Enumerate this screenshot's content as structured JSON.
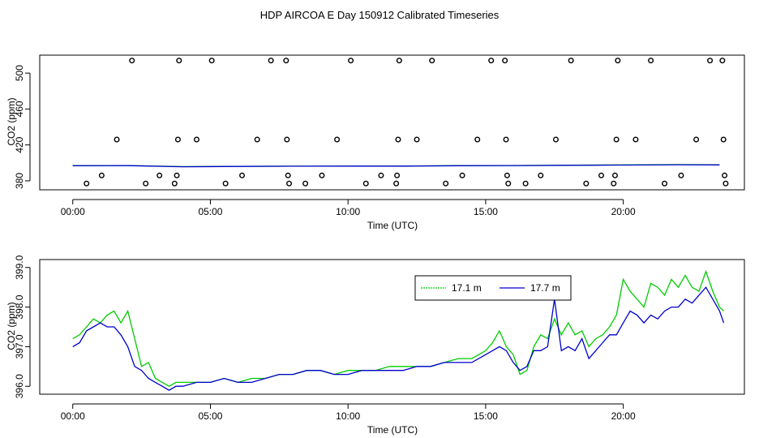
{
  "title": "HDP AIRCOA E  Day 150912  Calibrated Timeseries",
  "chart_data": [
    {
      "type": "scatter",
      "xlabel": "Time (UTC)",
      "ylabel": "CO2 (ppm)",
      "xlim": [
        -1.2,
        24.4
      ],
      "ylim": [
        370,
        520
      ],
      "xticks": [
        0,
        5,
        10,
        15,
        20
      ],
      "xtick_labels": [
        "00:00",
        "05:00",
        "10:00",
        "15:00",
        "20:00"
      ],
      "yticks": [
        380,
        420,
        460,
        500
      ],
      "ytick_labels": [
        "380",
        "420",
        "460",
        "500"
      ],
      "grid": false,
      "points": [
        {
          "x": 0.5,
          "y": 377
        },
        {
          "x": 1.05,
          "y": 386
        },
        {
          "x": 1.6,
          "y": 426
        },
        {
          "x": 2.15,
          "y": 514
        },
        {
          "x": 2.65,
          "y": 377
        },
        {
          "x": 3.15,
          "y": 386
        },
        {
          "x": 3.7,
          "y": 377
        },
        {
          "x": 3.78,
          "y": 386
        },
        {
          "x": 3.82,
          "y": 426
        },
        {
          "x": 3.86,
          "y": 514
        },
        {
          "x": 4.5,
          "y": 426
        },
        {
          "x": 5.05,
          "y": 514
        },
        {
          "x": 5.55,
          "y": 377
        },
        {
          "x": 6.15,
          "y": 386
        },
        {
          "x": 6.7,
          "y": 426
        },
        {
          "x": 7.2,
          "y": 514
        },
        {
          "x": 7.75,
          "y": 514
        },
        {
          "x": 7.78,
          "y": 426
        },
        {
          "x": 7.82,
          "y": 386
        },
        {
          "x": 7.86,
          "y": 377
        },
        {
          "x": 8.45,
          "y": 377
        },
        {
          "x": 9.05,
          "y": 386
        },
        {
          "x": 9.6,
          "y": 426
        },
        {
          "x": 10.1,
          "y": 514
        },
        {
          "x": 10.65,
          "y": 377
        },
        {
          "x": 11.2,
          "y": 386
        },
        {
          "x": 11.75,
          "y": 377
        },
        {
          "x": 11.78,
          "y": 386
        },
        {
          "x": 11.82,
          "y": 426
        },
        {
          "x": 11.86,
          "y": 514
        },
        {
          "x": 12.5,
          "y": 426
        },
        {
          "x": 13.05,
          "y": 514
        },
        {
          "x": 13.55,
          "y": 377
        },
        {
          "x": 14.15,
          "y": 386
        },
        {
          "x": 14.7,
          "y": 426
        },
        {
          "x": 15.2,
          "y": 514
        },
        {
          "x": 15.7,
          "y": 514
        },
        {
          "x": 15.74,
          "y": 426
        },
        {
          "x": 15.78,
          "y": 386
        },
        {
          "x": 15.82,
          "y": 377
        },
        {
          "x": 16.45,
          "y": 377
        },
        {
          "x": 17.0,
          "y": 386
        },
        {
          "x": 17.55,
          "y": 426
        },
        {
          "x": 18.1,
          "y": 514
        },
        {
          "x": 18.65,
          "y": 377
        },
        {
          "x": 19.2,
          "y": 386
        },
        {
          "x": 19.65,
          "y": 377
        },
        {
          "x": 19.7,
          "y": 386
        },
        {
          "x": 19.75,
          "y": 426
        },
        {
          "x": 19.8,
          "y": 514
        },
        {
          "x": 20.45,
          "y": 426
        },
        {
          "x": 21.0,
          "y": 514
        },
        {
          "x": 21.5,
          "y": 377
        },
        {
          "x": 22.1,
          "y": 386
        },
        {
          "x": 22.65,
          "y": 426
        },
        {
          "x": 23.15,
          "y": 514
        },
        {
          "x": 23.6,
          "y": 514
        },
        {
          "x": 23.64,
          "y": 426
        },
        {
          "x": 23.68,
          "y": 386
        },
        {
          "x": 23.72,
          "y": 377
        }
      ],
      "series": [
        {
          "name": "17.1 m",
          "color": "#00cc00",
          "x": [
            0,
            2,
            4,
            6,
            8,
            10,
            12,
            14,
            16,
            18,
            20,
            22,
            23.5
          ],
          "values": [
            396.9,
            397.0,
            395.8,
            396.1,
            396.3,
            396.4,
            396.5,
            396.9,
            397.0,
            397.4,
            397.7,
            398.1,
            397.9
          ]
        },
        {
          "name": "17.7 m",
          "color": "#0000cc",
          "x": [
            0,
            2,
            4,
            6,
            8,
            10,
            12,
            14,
            16,
            18,
            20,
            22,
            23.5
          ],
          "values": [
            396.8,
            396.9,
            395.7,
            396.0,
            396.3,
            396.4,
            396.4,
            396.8,
            397.0,
            397.3,
            397.6,
            397.9,
            397.7
          ]
        }
      ]
    },
    {
      "type": "line",
      "xlabel": "Time (UTC)",
      "ylabel": "CO2 (ppm)",
      "xlim": [
        -1.2,
        24.4
      ],
      "ylim": [
        395.8,
        399.2
      ],
      "xticks": [
        0,
        5,
        10,
        15,
        20
      ],
      "xtick_labels": [
        "00:00",
        "05:00",
        "10:00",
        "15:00",
        "20:00"
      ],
      "yticks": [
        396.0,
        397.0,
        398.0,
        399.0
      ],
      "ytick_labels": [
        "396.0",
        "397.0",
        "398.0",
        "399.0"
      ],
      "grid": false,
      "legend_position": "top-right",
      "series": [
        {
          "name": "17.1 m",
          "color": "#00cc00",
          "x": [
            0,
            0.25,
            0.5,
            0.75,
            1,
            1.25,
            1.5,
            1.75,
            2,
            2.25,
            2.5,
            2.75,
            3,
            3.25,
            3.5,
            3.75,
            4,
            4.5,
            5,
            5.5,
            6,
            6.5,
            7,
            7.5,
            8,
            8.5,
            9,
            9.5,
            10,
            10.5,
            11,
            11.5,
            12,
            12.5,
            13,
            13.5,
            14,
            14.5,
            15,
            15.25,
            15.5,
            15.75,
            16,
            16.25,
            16.5,
            16.75,
            17,
            17.25,
            17.5,
            17.75,
            18,
            18.25,
            18.5,
            18.75,
            19,
            19.25,
            19.5,
            19.75,
            20,
            20.25,
            20.5,
            20.75,
            21,
            21.25,
            21.5,
            21.75,
            22,
            22.25,
            22.5,
            22.75,
            23,
            23.25,
            23.5,
            23.65
          ],
          "values": [
            397.2,
            397.3,
            397.5,
            397.7,
            397.6,
            397.8,
            397.9,
            397.6,
            397.9,
            397.2,
            396.5,
            396.6,
            396.2,
            396.1,
            396.0,
            396.1,
            396.1,
            396.1,
            396.1,
            396.2,
            396.1,
            396.2,
            396.2,
            396.3,
            396.3,
            396.4,
            396.4,
            396.3,
            396.4,
            396.4,
            396.4,
            396.5,
            396.5,
            396.5,
            396.5,
            396.6,
            396.7,
            396.7,
            396.9,
            397.1,
            397.4,
            397.0,
            396.8,
            396.3,
            396.4,
            397.0,
            397.3,
            397.2,
            397.7,
            397.3,
            397.6,
            397.3,
            397.4,
            397.0,
            397.2,
            397.3,
            397.5,
            397.8,
            398.7,
            398.4,
            398.2,
            398.0,
            398.6,
            398.5,
            398.3,
            398.7,
            398.5,
            398.8,
            398.5,
            398.4,
            398.9,
            398.4,
            398.0,
            397.9
          ]
        },
        {
          "name": "17.7 m",
          "color": "#0000cc",
          "x": [
            0,
            0.25,
            0.5,
            0.75,
            1,
            1.25,
            1.5,
            1.75,
            2,
            2.25,
            2.5,
            2.75,
            3,
            3.25,
            3.5,
            3.75,
            4,
            4.5,
            5,
            5.5,
            6,
            6.5,
            7,
            7.5,
            8,
            8.5,
            9,
            9.5,
            10,
            10.5,
            11,
            11.5,
            12,
            12.5,
            13,
            13.5,
            14,
            14.5,
            15,
            15.25,
            15.5,
            15.75,
            16,
            16.25,
            16.5,
            16.75,
            17,
            17.25,
            17.5,
            17.75,
            18,
            18.25,
            18.5,
            18.75,
            19,
            19.25,
            19.5,
            19.75,
            20,
            20.25,
            20.5,
            20.75,
            21,
            21.25,
            21.5,
            21.75,
            22,
            22.25,
            22.5,
            22.75,
            23,
            23.25,
            23.5,
            23.65
          ],
          "values": [
            397.0,
            397.1,
            397.4,
            397.5,
            397.6,
            397.5,
            397.5,
            397.3,
            397.0,
            396.5,
            396.4,
            396.2,
            396.1,
            396.0,
            395.9,
            396.0,
            396.0,
            396.1,
            396.1,
            396.2,
            396.1,
            396.1,
            396.2,
            396.3,
            396.3,
            396.4,
            396.4,
            396.3,
            396.3,
            396.4,
            396.4,
            396.4,
            396.4,
            396.5,
            396.5,
            396.6,
            396.6,
            396.6,
            396.8,
            396.9,
            397.0,
            396.9,
            396.6,
            396.4,
            396.5,
            396.9,
            396.9,
            397.0,
            398.2,
            396.9,
            397.0,
            396.9,
            397.2,
            396.7,
            396.9,
            397.1,
            397.3,
            397.3,
            397.6,
            397.9,
            397.8,
            397.6,
            397.8,
            397.7,
            397.9,
            398.0,
            398.0,
            398.2,
            398.1,
            398.3,
            398.5,
            398.2,
            397.9,
            397.6
          ]
        }
      ]
    }
  ]
}
